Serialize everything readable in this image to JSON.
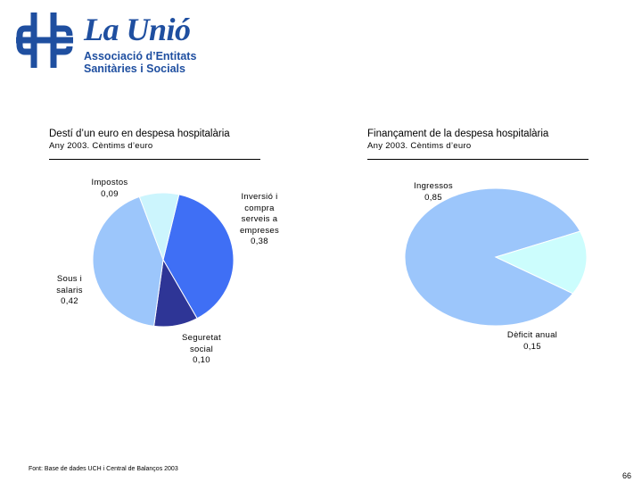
{
  "logo": {
    "name": "La Unió",
    "line1": "Associació d’Entitats",
    "line2": "Sanitàries i Socials"
  },
  "colors": {
    "brand": "#1f4fa0"
  },
  "chart_data": [
    {
      "type": "pie",
      "title": "Destí d’un euro en despesa hospitalària",
      "subtitle": "Any 2003. Cèntims d’euro",
      "slices": [
        {
          "label": "Inversió i compra serveis a empreses",
          "label_lines": [
            "Inversió i",
            "compra",
            "serveis a",
            "empreses"
          ],
          "value": 0.38,
          "display": "0,38",
          "color": "#3f6ff5"
        },
        {
          "label": "Seguretat social",
          "label_lines": [
            "Seguretat",
            "social"
          ],
          "value": 0.1,
          "display": "0,10",
          "color": "#2e3596"
        },
        {
          "label": "Sous i salaris",
          "label_lines": [
            "Sous i",
            "salaris"
          ],
          "value": 0.42,
          "display": "0,42",
          "color": "#9cc6fb"
        },
        {
          "label": "Impostos",
          "label_lines": [
            "Impostos"
          ],
          "value": 0.09,
          "display": "0,09",
          "color": "#ccf5fd"
        }
      ]
    },
    {
      "type": "pie",
      "title": "Finançament de la despesa hospitalària",
      "subtitle": "Any 2003. Cèntims d’euro",
      "slices": [
        {
          "label": "Ingressos",
          "label_lines": [
            "Ingressos"
          ],
          "value": 0.85,
          "display": "0,85",
          "color": "#9cc6fb"
        },
        {
          "label": "Dèficit anual",
          "label_lines": [
            "Dèficit anual"
          ],
          "value": 0.15,
          "display": "0,15",
          "color": "#ccfdfd"
        }
      ]
    }
  ],
  "source": "Font: Base de dades UCH i Central de Balanços 2003",
  "page_number": "66"
}
